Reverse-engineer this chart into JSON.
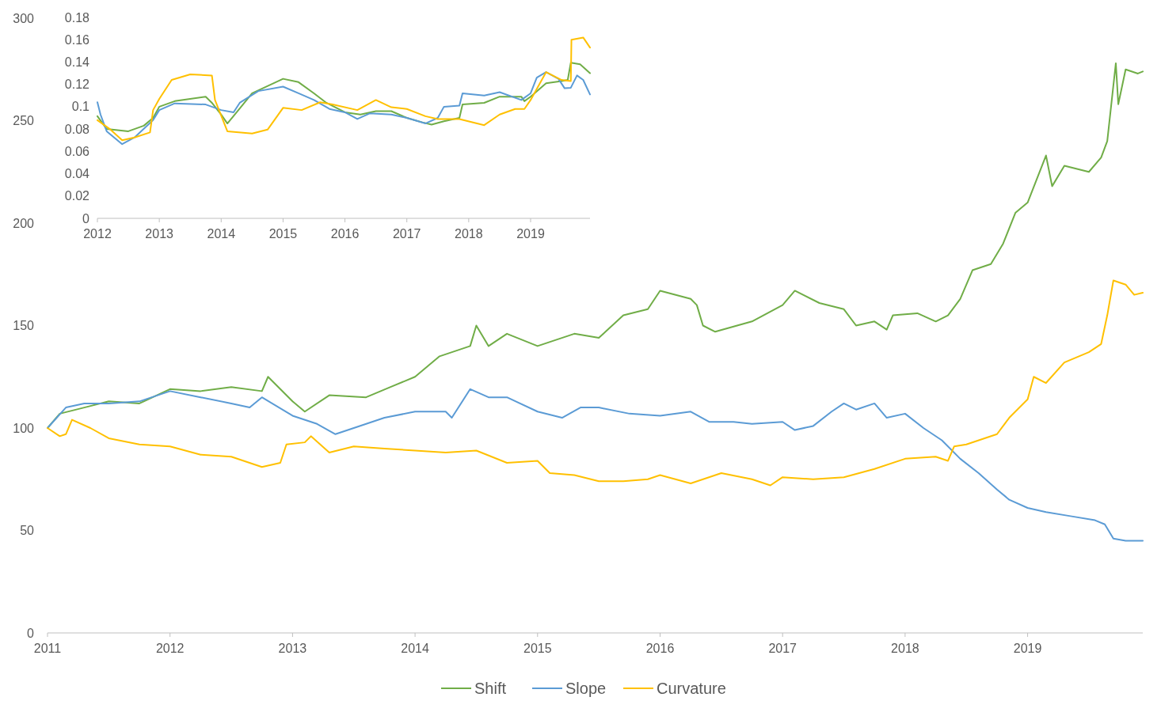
{
  "chart_data": [
    {
      "type": "line",
      "xlim": [
        2011,
        2019.94
      ],
      "ylim": [
        0,
        300
      ],
      "xticks": [
        2011,
        2012,
        2013,
        2014,
        2015,
        2016,
        2017,
        2018,
        2019
      ],
      "yticks": [
        0,
        50,
        100,
        150,
        200,
        250,
        300
      ],
      "grid": false,
      "legend": "bottom",
      "marker": "none",
      "line_style": "solid",
      "series": [
        {
          "name": "Shift",
          "color": "#70ad47",
          "x": [
            2011,
            2011.1,
            2011.3,
            2011.5,
            2011.75,
            2012,
            2012.25,
            2012.5,
            2012.75,
            2012.8,
            2013,
            2013.1,
            2013.3,
            2013.6,
            2013.8,
            2014,
            2014.2,
            2014.45,
            2014.5,
            2014.6,
            2014.75,
            2015,
            2015.3,
            2015.5,
            2015.7,
            2015.9,
            2016,
            2016.25,
            2016.3,
            2016.35,
            2016.45,
            2016.75,
            2017,
            2017.1,
            2017.3,
            2017.5,
            2017.6,
            2017.75,
            2017.85,
            2017.9,
            2018.1,
            2018.25,
            2018.35,
            2018.45,
            2018.55,
            2018.7,
            2018.8,
            2018.9,
            2019,
            2019.15,
            2019.2,
            2019.3,
            2019.5,
            2019.6,
            2019.65,
            2019.72,
            2019.74,
            2019.8,
            2019.9,
            2019.94
          ],
          "values": [
            100,
            107,
            110,
            113,
            112,
            119,
            118,
            120,
            118,
            125,
            113,
            108,
            116,
            115,
            120,
            125,
            135,
            140,
            150,
            140,
            146,
            140,
            146,
            144,
            155,
            158,
            167,
            163,
            160,
            150,
            147,
            152,
            160,
            167,
            161,
            158,
            150,
            152,
            148,
            155,
            156,
            152,
            155,
            163,
            177,
            180,
            190,
            205,
            210,
            233,
            218,
            228,
            225,
            232,
            240,
            278,
            258,
            275,
            273,
            274
          ]
        },
        {
          "name": "Slope",
          "color": "#5b9bd5",
          "x": [
            2011,
            2011.15,
            2011.3,
            2011.5,
            2011.75,
            2012,
            2012.25,
            2012.5,
            2012.65,
            2012.75,
            2013,
            2013.2,
            2013.35,
            2013.5,
            2013.75,
            2014,
            2014.25,
            2014.3,
            2014.45,
            2014.6,
            2014.75,
            2015,
            2015.2,
            2015.35,
            2015.5,
            2015.75,
            2016,
            2016.25,
            2016.4,
            2016.6,
            2016.75,
            2017,
            2017.1,
            2017.25,
            2017.4,
            2017.5,
            2017.6,
            2017.75,
            2017.85,
            2018,
            2018.15,
            2018.3,
            2018.45,
            2018.6,
            2018.75,
            2018.85,
            2019,
            2019.15,
            2019.35,
            2019.55,
            2019.63,
            2019.7,
            2019.8,
            2019.94
          ],
          "values": [
            100,
            110,
            112,
            112,
            113,
            118,
            115,
            112,
            110,
            115,
            106,
            102,
            97,
            100,
            105,
            108,
            108,
            105,
            119,
            115,
            115,
            108,
            105,
            110,
            110,
            107,
            106,
            108,
            103,
            103,
            102,
            103,
            99,
            101,
            108,
            112,
            109,
            112,
            105,
            107,
            100,
            94,
            85,
            78,
            70,
            65,
            61,
            59,
            57,
            55,
            53,
            46,
            45,
            45
          ]
        },
        {
          "name": "Curvature",
          "color": "#ffc000",
          "x": [
            2011,
            2011.1,
            2011.15,
            2011.2,
            2011.35,
            2011.5,
            2011.75,
            2012,
            2012.25,
            2012.5,
            2012.75,
            2012.9,
            2012.95,
            2013.1,
            2013.15,
            2013.3,
            2013.5,
            2013.75,
            2014,
            2014.25,
            2014.5,
            2014.75,
            2015,
            2015.1,
            2015.3,
            2015.5,
            2015.7,
            2015.9,
            2016,
            2016.25,
            2016.5,
            2016.75,
            2016.9,
            2017,
            2017.25,
            2017.5,
            2017.75,
            2018,
            2018.25,
            2018.35,
            2018.4,
            2018.5,
            2018.75,
            2018.85,
            2019,
            2019.05,
            2019.15,
            2019.3,
            2019.5,
            2019.6,
            2019.65,
            2019.7,
            2019.8,
            2019.87,
            2019.94
          ],
          "values": [
            100,
            96,
            97,
            104,
            100,
            95,
            92,
            91,
            87,
            86,
            81,
            83,
            92,
            93,
            96,
            88,
            91,
            90,
            89,
            88,
            89,
            83,
            84,
            78,
            77,
            74,
            74,
            75,
            77,
            73,
            78,
            75,
            72,
            76,
            75,
            76,
            80,
            85,
            86,
            84,
            91,
            92,
            97,
            105,
            114,
            125,
            122,
            132,
            137,
            141,
            155,
            172,
            170,
            165,
            166
          ]
        }
      ]
    },
    {
      "type": "line",
      "xlim": [
        2012,
        2019.96
      ],
      "ylim": [
        0,
        0.18
      ],
      "xticks": [
        2012,
        2013,
        2014,
        2015,
        2016,
        2017,
        2018,
        2019
      ],
      "yticks": [
        0,
        0.02,
        0.04,
        0.06,
        0.08,
        0.1,
        0.12,
        0.14,
        0.16,
        0.18
      ],
      "grid": false,
      "legend": false,
      "marker": "none",
      "line_style": "solid",
      "series": [
        {
          "color": "#70ad47",
          "x": [
            2012,
            2012.15,
            2012.5,
            2012.75,
            2012.9,
            2013,
            2013.25,
            2013.75,
            2013.85,
            2014,
            2014.1,
            2014.25,
            2014.5,
            2015,
            2015.25,
            2015.5,
            2015.7,
            2016,
            2016.25,
            2016.5,
            2016.75,
            2017,
            2017.25,
            2017.4,
            2017.6,
            2017.85,
            2017.9,
            2018.25,
            2018.5,
            2018.85,
            2018.9,
            2019,
            2019.25,
            2019.5,
            2019.6,
            2019.65,
            2019.8,
            2019.96
          ],
          "values": [
            0.0915,
            0.08,
            0.078,
            0.083,
            0.09,
            0.1,
            0.105,
            0.109,
            0.1035,
            0.093,
            0.085,
            0.095,
            0.112,
            0.125,
            0.122,
            0.112,
            0.1035,
            0.095,
            0.093,
            0.096,
            0.096,
            0.09,
            0.086,
            0.084,
            0.087,
            0.09,
            0.102,
            0.1035,
            0.109,
            0.109,
            0.105,
            0.109,
            0.121,
            0.123,
            0.124,
            0.1395,
            0.138,
            0.13
          ]
        },
        {
          "color": "#5b9bd5",
          "x": [
            2012,
            2012.05,
            2012.15,
            2012.4,
            2012.6,
            2012.9,
            2013,
            2013.25,
            2013.75,
            2014,
            2014.2,
            2014.3,
            2014.6,
            2015,
            2015.25,
            2015.5,
            2015.75,
            2016,
            2016.2,
            2016.4,
            2016.75,
            2017,
            2017.3,
            2017.5,
            2017.6,
            2017.85,
            2017.9,
            2018.25,
            2018.5,
            2018.85,
            2019,
            2019.1,
            2019.25,
            2019.45,
            2019.55,
            2019.65,
            2019.75,
            2019.85,
            2019.96
          ],
          "values": [
            0.104,
            0.093,
            0.078,
            0.0665,
            0.0725,
            0.088,
            0.097,
            0.103,
            0.102,
            0.097,
            0.095,
            0.1035,
            0.114,
            0.118,
            0.112,
            0.106,
            0.098,
            0.095,
            0.089,
            0.094,
            0.093,
            0.09,
            0.085,
            0.09,
            0.1,
            0.101,
            0.112,
            0.11,
            0.113,
            0.106,
            0.112,
            0.126,
            0.131,
            0.125,
            0.1165,
            0.117,
            0.128,
            0.124,
            0.111
          ]
        },
        {
          "color": "#ffc000",
          "x": [
            2012,
            2012.2,
            2012.4,
            2012.6,
            2012.85,
            2012.9,
            2013,
            2013.2,
            2013.5,
            2013.85,
            2013.9,
            2014.1,
            2014.5,
            2014.75,
            2015,
            2015.3,
            2015.6,
            2015.8,
            2016.2,
            2016.5,
            2016.75,
            2017,
            2017.3,
            2017.5,
            2017.85,
            2018.25,
            2018.5,
            2018.75,
            2018.9,
            2019,
            2019.25,
            2019.5,
            2019.65,
            2019.66,
            2019.85,
            2019.96
          ],
          "values": [
            0.088,
            0.08,
            0.07,
            0.0725,
            0.077,
            0.097,
            0.107,
            0.124,
            0.129,
            0.128,
            0.106,
            0.078,
            0.076,
            0.0795,
            0.099,
            0.097,
            0.104,
            0.102,
            0.097,
            0.106,
            0.0995,
            0.098,
            0.0915,
            0.089,
            0.089,
            0.0835,
            0.093,
            0.098,
            0.098,
            0.106,
            0.131,
            0.124,
            0.123,
            0.16,
            0.162,
            0.153
          ]
        }
      ]
    }
  ]
}
